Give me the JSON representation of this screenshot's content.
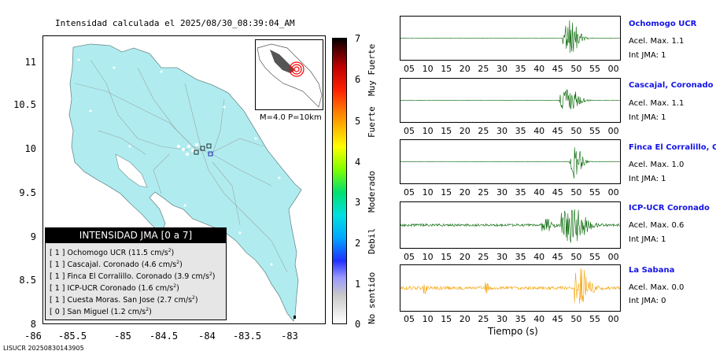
{
  "map": {
    "title": "Intensidad calculada el 2025/08/30_08:39:04_AM",
    "y_ticks": [
      "11",
      "10.5",
      "10",
      "9.5",
      "9",
      "8.5",
      "8"
    ],
    "x_ticks": [
      "-86",
      "-85.5",
      "-85",
      "-84.5",
      "-84",
      "-83.5",
      "-83"
    ],
    "inset_label": "M=4.0 P=10km",
    "land_color": "#b0ecef",
    "legend": {
      "header": "INTENSIDAD JMA [0 a 7]",
      "rows": [
        {
          "pre": "[ 1 ]  Ochomogo UCR (11.5 cm/s",
          "sup": "2",
          "post": ")"
        },
        {
          "pre": "[ 1 ]  Cascajal. Coronado (4.6 cm/s",
          "sup": "2",
          "post": ")"
        },
        {
          "pre": "[ 1 ]  Finca El Corralillo. Coronado (3.9 cm/s",
          "sup": "2",
          "post": ")"
        },
        {
          "pre": "[ 1 ]  ICP-UCR Coronado (1.6 cm/s",
          "sup": "2",
          "post": ")"
        },
        {
          "pre": "[ 1 ]  Cuesta Moras. San Jose (2.7 cm/s",
          "sup": "2",
          "post": ")"
        },
        {
          "pre": "[ 0 ]  San Miguel (1.2 cm/s",
          "sup": "2",
          "post": ")"
        }
      ]
    }
  },
  "scale": {
    "numbers": [
      "7",
      "6",
      "5",
      "4",
      "3",
      "2",
      "1",
      "0"
    ],
    "words": [
      "Muy Fuerte",
      "Fuerte",
      "Moderado",
      "Debil",
      "No sentido"
    ]
  },
  "stations": [
    {
      "name": "Ochomogo UCR",
      "accel": "Acel. Max. 1.1",
      "jma": "Int JMA: 1",
      "color": "#006400"
    },
    {
      "name": "Cascajal, Coronado",
      "accel": "Acel. Max. 1.1",
      "jma": "Int JMA: 1",
      "color": "#006400"
    },
    {
      "name": "Finca El Corralillo, Coro",
      "accel": "Acel. Max. 1.0",
      "jma": "Int JMA: 1",
      "color": "#006400"
    },
    {
      "name": "ICP-UCR Coronado",
      "accel": "Acel. Max. 0.6",
      "jma": "Int JMA: 1",
      "color": "#006400"
    },
    {
      "name": "La Sabana",
      "accel": "Acel. Max. 0.0",
      "jma": "Int JMA: 0",
      "color": "#f5a000"
    }
  ],
  "time_ticks": [
    "05",
    "10",
    "15",
    "20",
    "25",
    "30",
    "35",
    "40",
    "45",
    "50",
    "55",
    "00"
  ],
  "time_label": "Tiempo (s)",
  "footer_id": "LISUCR 20250830143905"
}
